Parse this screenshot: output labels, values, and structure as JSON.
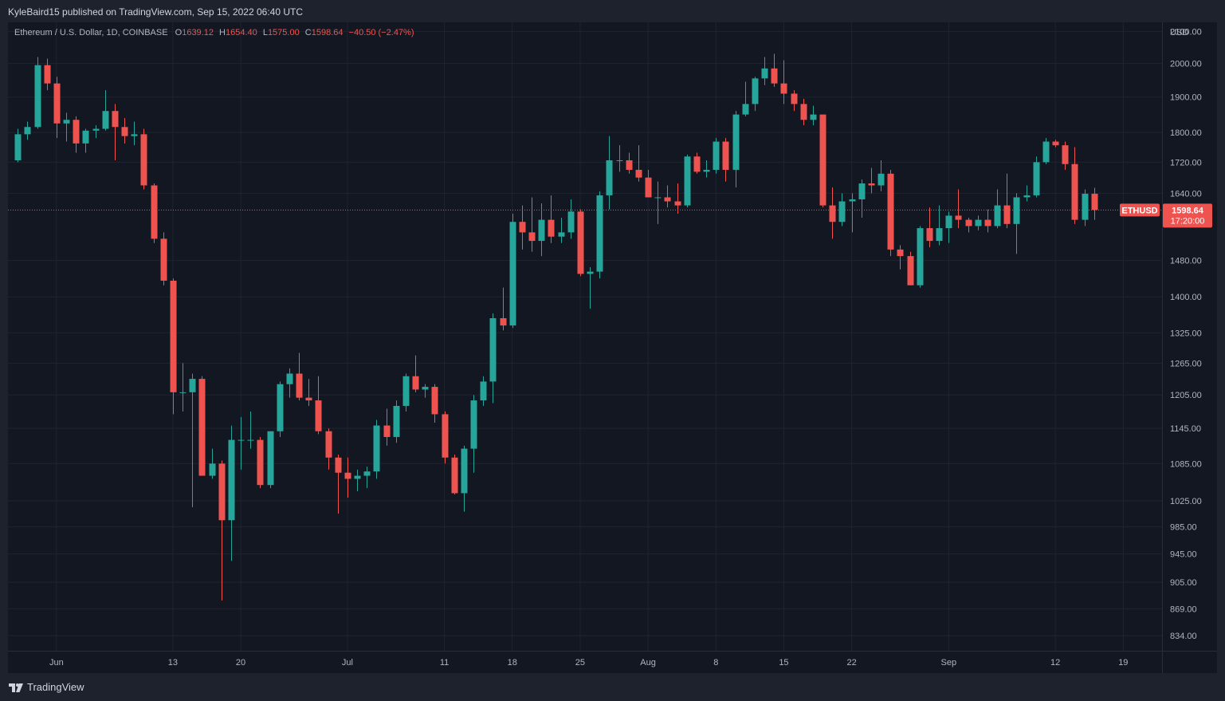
{
  "header": {
    "published_text": "KyleBaird15 published on TradingView.com, Sep 15, 2022 06:40 UTC"
  },
  "legend": {
    "title": "Ethereum / U.S. Dollar, 1D, COINBASE",
    "o_label": "O",
    "o_value": "1639.12",
    "h_label": "H",
    "h_value": "1654.40",
    "l_label": "L",
    "l_value": "1575.00",
    "c_label": "C",
    "c_value": "1598.64",
    "change": "−40.50 (−2.47%)"
  },
  "footer": {
    "brand": "TradingView"
  },
  "colors": {
    "up": "#26a69a",
    "down": "#ef5350",
    "background": "#131722",
    "chrome": "#1e222d",
    "grid": "#1f2431",
    "text": "#b2b5be"
  },
  "chart_data": {
    "type": "candlestick",
    "symbol": "ETHUSD",
    "currency_label": "USD",
    "ylim": [
      815,
      2130
    ],
    "y_scale": "log",
    "y_ticks": [
      "2100.00",
      "2000.00",
      "1900.00",
      "1800.00",
      "1720.00",
      "1640.00",
      "1480.00",
      "1400.00",
      "1325.00",
      "1265.00",
      "1205.00",
      "1145.00",
      "1085.00",
      "1025.00",
      "985.00",
      "945.00",
      "905.00",
      "869.00",
      "834.00"
    ],
    "x_ticks": [
      {
        "label": "Jun",
        "date": "2022-06-01"
      },
      {
        "label": "13",
        "date": "2022-06-13"
      },
      {
        "label": "20",
        "date": "2022-06-20"
      },
      {
        "label": "Jul",
        "date": "2022-07-01"
      },
      {
        "label": "11",
        "date": "2022-07-11"
      },
      {
        "label": "18",
        "date": "2022-07-18"
      },
      {
        "label": "25",
        "date": "2022-07-25"
      },
      {
        "label": "Aug",
        "date": "2022-08-01"
      },
      {
        "label": "8",
        "date": "2022-08-08"
      },
      {
        "label": "15",
        "date": "2022-08-15"
      },
      {
        "label": "22",
        "date": "2022-08-22"
      },
      {
        "label": "Sep",
        "date": "2022-09-01"
      },
      {
        "label": "12",
        "date": "2022-09-12"
      },
      {
        "label": "19",
        "date": "2022-09-19"
      }
    ],
    "x_range": [
      "2022-05-27",
      "2022-09-23"
    ],
    "grid": true,
    "last_price": {
      "value": 1598.64,
      "label_price": "1598.64",
      "label_countdown": "17:20:00",
      "symbol_tag": "ETHUSD"
    },
    "candles": [
      {
        "date": "2022-05-28",
        "o": 1725,
        "h": 1810,
        "l": 1720,
        "c": 1795
      },
      {
        "date": "2022-05-29",
        "o": 1795,
        "h": 1830,
        "l": 1780,
        "c": 1815
      },
      {
        "date": "2022-05-30",
        "o": 1815,
        "h": 2020,
        "l": 1810,
        "c": 1995
      },
      {
        "date": "2022-05-31",
        "o": 1995,
        "h": 2015,
        "l": 1920,
        "c": 1940
      },
      {
        "date": "2022-06-01",
        "o": 1940,
        "h": 1960,
        "l": 1785,
        "c": 1825
      },
      {
        "date": "2022-06-02",
        "o": 1825,
        "h": 1855,
        "l": 1775,
        "c": 1835
      },
      {
        "date": "2022-06-03",
        "o": 1835,
        "h": 1845,
        "l": 1745,
        "c": 1770
      },
      {
        "date": "2022-06-04",
        "o": 1770,
        "h": 1810,
        "l": 1745,
        "c": 1805
      },
      {
        "date": "2022-06-05",
        "o": 1805,
        "h": 1820,
        "l": 1785,
        "c": 1810
      },
      {
        "date": "2022-06-06",
        "o": 1810,
        "h": 1920,
        "l": 1805,
        "c": 1860
      },
      {
        "date": "2022-06-07",
        "o": 1860,
        "h": 1880,
        "l": 1725,
        "c": 1815
      },
      {
        "date": "2022-06-08",
        "o": 1815,
        "h": 1840,
        "l": 1770,
        "c": 1790
      },
      {
        "date": "2022-06-09",
        "o": 1790,
        "h": 1830,
        "l": 1765,
        "c": 1795
      },
      {
        "date": "2022-06-10",
        "o": 1795,
        "h": 1810,
        "l": 1650,
        "c": 1660
      },
      {
        "date": "2022-06-11",
        "o": 1660,
        "h": 1665,
        "l": 1520,
        "c": 1530
      },
      {
        "date": "2022-06-12",
        "o": 1530,
        "h": 1545,
        "l": 1425,
        "c": 1435
      },
      {
        "date": "2022-06-13",
        "o": 1435,
        "h": 1440,
        "l": 1170,
        "c": 1210
      },
      {
        "date": "2022-06-14",
        "o": 1210,
        "h": 1265,
        "l": 1175,
        "c": 1210
      },
      {
        "date": "2022-06-15",
        "o": 1210,
        "h": 1245,
        "l": 1015,
        "c": 1235
      },
      {
        "date": "2022-06-16",
        "o": 1235,
        "h": 1240,
        "l": 1065,
        "c": 1065
      },
      {
        "date": "2022-06-17",
        "o": 1065,
        "h": 1110,
        "l": 1060,
        "c": 1085
      },
      {
        "date": "2022-06-18",
        "o": 1085,
        "h": 1090,
        "l": 880,
        "c": 995
      },
      {
        "date": "2022-06-19",
        "o": 995,
        "h": 1150,
        "l": 935,
        "c": 1125
      },
      {
        "date": "2022-06-20",
        "o": 1125,
        "h": 1165,
        "l": 1075,
        "c": 1125
      },
      {
        "date": "2022-06-21",
        "o": 1125,
        "h": 1175,
        "l": 1110,
        "c": 1125
      },
      {
        "date": "2022-06-22",
        "o": 1125,
        "h": 1130,
        "l": 1045,
        "c": 1050
      },
      {
        "date": "2022-06-23",
        "o": 1050,
        "h": 1135,
        "l": 1045,
        "c": 1140
      },
      {
        "date": "2022-06-24",
        "o": 1140,
        "h": 1230,
        "l": 1130,
        "c": 1225
      },
      {
        "date": "2022-06-25",
        "o": 1225,
        "h": 1255,
        "l": 1200,
        "c": 1245
      },
      {
        "date": "2022-06-26",
        "o": 1245,
        "h": 1285,
        "l": 1195,
        "c": 1200
      },
      {
        "date": "2022-06-27",
        "o": 1200,
        "h": 1235,
        "l": 1185,
        "c": 1195
      },
      {
        "date": "2022-06-28",
        "o": 1195,
        "h": 1240,
        "l": 1135,
        "c": 1140
      },
      {
        "date": "2022-06-29",
        "o": 1140,
        "h": 1145,
        "l": 1075,
        "c": 1095
      },
      {
        "date": "2022-06-30",
        "o": 1095,
        "h": 1100,
        "l": 1005,
        "c": 1070
      },
      {
        "date": "2022-07-01",
        "o": 1070,
        "h": 1095,
        "l": 1030,
        "c": 1060
      },
      {
        "date": "2022-07-02",
        "o": 1060,
        "h": 1075,
        "l": 1040,
        "c": 1065
      },
      {
        "date": "2022-07-03",
        "o": 1065,
        "h": 1080,
        "l": 1045,
        "c": 1072
      },
      {
        "date": "2022-07-04",
        "o": 1072,
        "h": 1160,
        "l": 1060,
        "c": 1150
      },
      {
        "date": "2022-07-05",
        "o": 1150,
        "h": 1180,
        "l": 1115,
        "c": 1130
      },
      {
        "date": "2022-07-06",
        "o": 1130,
        "h": 1195,
        "l": 1120,
        "c": 1185
      },
      {
        "date": "2022-07-07",
        "o": 1185,
        "h": 1245,
        "l": 1175,
        "c": 1240
      },
      {
        "date": "2022-07-08",
        "o": 1240,
        "h": 1280,
        "l": 1210,
        "c": 1215
      },
      {
        "date": "2022-07-09",
        "o": 1215,
        "h": 1225,
        "l": 1200,
        "c": 1220
      },
      {
        "date": "2022-07-10",
        "o": 1220,
        "h": 1225,
        "l": 1155,
        "c": 1170
      },
      {
        "date": "2022-07-11",
        "o": 1170,
        "h": 1175,
        "l": 1085,
        "c": 1095
      },
      {
        "date": "2022-07-12",
        "o": 1095,
        "h": 1100,
        "l": 1035,
        "c": 1037
      },
      {
        "date": "2022-07-13",
        "o": 1037,
        "h": 1115,
        "l": 1008,
        "c": 1110
      },
      {
        "date": "2022-07-14",
        "o": 1110,
        "h": 1205,
        "l": 1070,
        "c": 1195
      },
      {
        "date": "2022-07-15",
        "o": 1195,
        "h": 1240,
        "l": 1185,
        "c": 1230
      },
      {
        "date": "2022-07-16",
        "o": 1230,
        "h": 1365,
        "l": 1190,
        "c": 1355
      },
      {
        "date": "2022-07-17",
        "o": 1355,
        "h": 1420,
        "l": 1330,
        "c": 1340
      },
      {
        "date": "2022-07-18",
        "o": 1340,
        "h": 1590,
        "l": 1335,
        "c": 1570
      },
      {
        "date": "2022-07-19",
        "o": 1570,
        "h": 1610,
        "l": 1505,
        "c": 1545
      },
      {
        "date": "2022-07-20",
        "o": 1545,
        "h": 1630,
        "l": 1500,
        "c": 1525
      },
      {
        "date": "2022-07-21",
        "o": 1525,
        "h": 1615,
        "l": 1490,
        "c": 1575
      },
      {
        "date": "2022-07-22",
        "o": 1575,
        "h": 1635,
        "l": 1520,
        "c": 1535
      },
      {
        "date": "2022-07-23",
        "o": 1535,
        "h": 1580,
        "l": 1520,
        "c": 1545
      },
      {
        "date": "2022-07-24",
        "o": 1545,
        "h": 1625,
        "l": 1530,
        "c": 1595
      },
      {
        "date": "2022-07-25",
        "o": 1595,
        "h": 1600,
        "l": 1445,
        "c": 1450
      },
      {
        "date": "2022-07-26",
        "o": 1450,
        "h": 1465,
        "l": 1375,
        "c": 1455
      },
      {
        "date": "2022-07-27",
        "o": 1455,
        "h": 1645,
        "l": 1440,
        "c": 1635
      },
      {
        "date": "2022-07-28",
        "o": 1635,
        "h": 1790,
        "l": 1600,
        "c": 1725
      },
      {
        "date": "2022-07-29",
        "o": 1725,
        "h": 1765,
        "l": 1695,
        "c": 1725
      },
      {
        "date": "2022-07-30",
        "o": 1725,
        "h": 1745,
        "l": 1690,
        "c": 1700
      },
      {
        "date": "2022-07-31",
        "o": 1700,
        "h": 1765,
        "l": 1670,
        "c": 1680
      },
      {
        "date": "2022-08-01",
        "o": 1680,
        "h": 1700,
        "l": 1630,
        "c": 1630
      },
      {
        "date": "2022-08-02",
        "o": 1630,
        "h": 1670,
        "l": 1565,
        "c": 1630
      },
      {
        "date": "2022-08-03",
        "o": 1630,
        "h": 1660,
        "l": 1605,
        "c": 1620
      },
      {
        "date": "2022-08-04",
        "o": 1620,
        "h": 1665,
        "l": 1590,
        "c": 1610
      },
      {
        "date": "2022-08-05",
        "o": 1610,
        "h": 1740,
        "l": 1605,
        "c": 1735
      },
      {
        "date": "2022-08-06",
        "o": 1735,
        "h": 1745,
        "l": 1690,
        "c": 1695
      },
      {
        "date": "2022-08-07",
        "o": 1695,
        "h": 1725,
        "l": 1680,
        "c": 1700
      },
      {
        "date": "2022-08-08",
        "o": 1700,
        "h": 1785,
        "l": 1690,
        "c": 1775
      },
      {
        "date": "2022-08-09",
        "o": 1775,
        "h": 1785,
        "l": 1670,
        "c": 1700
      },
      {
        "date": "2022-08-10",
        "o": 1700,
        "h": 1860,
        "l": 1655,
        "c": 1850
      },
      {
        "date": "2022-08-11",
        "o": 1850,
        "h": 1945,
        "l": 1845,
        "c": 1880
      },
      {
        "date": "2022-08-12",
        "o": 1880,
        "h": 1960,
        "l": 1860,
        "c": 1955
      },
      {
        "date": "2022-08-13",
        "o": 1955,
        "h": 2020,
        "l": 1935,
        "c": 1985
      },
      {
        "date": "2022-08-14",
        "o": 1985,
        "h": 2030,
        "l": 1930,
        "c": 1940
      },
      {
        "date": "2022-08-15",
        "o": 1940,
        "h": 2010,
        "l": 1880,
        "c": 1910
      },
      {
        "date": "2022-08-16",
        "o": 1910,
        "h": 1920,
        "l": 1860,
        "c": 1880
      },
      {
        "date": "2022-08-17",
        "o": 1880,
        "h": 1895,
        "l": 1820,
        "c": 1835
      },
      {
        "date": "2022-08-18",
        "o": 1835,
        "h": 1875,
        "l": 1820,
        "c": 1850
      },
      {
        "date": "2022-08-19",
        "o": 1850,
        "h": 1850,
        "l": 1605,
        "c": 1610
      },
      {
        "date": "2022-08-20",
        "o": 1610,
        "h": 1655,
        "l": 1530,
        "c": 1570
      },
      {
        "date": "2022-08-21",
        "o": 1570,
        "h": 1640,
        "l": 1560,
        "c": 1620
      },
      {
        "date": "2022-08-22",
        "o": 1620,
        "h": 1640,
        "l": 1545,
        "c": 1625
      },
      {
        "date": "2022-08-23",
        "o": 1625,
        "h": 1675,
        "l": 1580,
        "c": 1665
      },
      {
        "date": "2022-08-24",
        "o": 1665,
        "h": 1705,
        "l": 1640,
        "c": 1660
      },
      {
        "date": "2022-08-25",
        "o": 1660,
        "h": 1725,
        "l": 1645,
        "c": 1690
      },
      {
        "date": "2022-08-26",
        "o": 1690,
        "h": 1700,
        "l": 1490,
        "c": 1505
      },
      {
        "date": "2022-08-27",
        "o": 1505,
        "h": 1515,
        "l": 1460,
        "c": 1490
      },
      {
        "date": "2022-08-28",
        "o": 1490,
        "h": 1500,
        "l": 1425,
        "c": 1425
      },
      {
        "date": "2022-08-29",
        "o": 1425,
        "h": 1560,
        "l": 1420,
        "c": 1555
      },
      {
        "date": "2022-08-30",
        "o": 1555,
        "h": 1605,
        "l": 1510,
        "c": 1525
      },
      {
        "date": "2022-08-31",
        "o": 1525,
        "h": 1610,
        "l": 1515,
        "c": 1555
      },
      {
        "date": "2022-09-01",
        "o": 1555,
        "h": 1595,
        "l": 1520,
        "c": 1585
      },
      {
        "date": "2022-09-02",
        "o": 1585,
        "h": 1650,
        "l": 1555,
        "c": 1575
      },
      {
        "date": "2022-09-03",
        "o": 1575,
        "h": 1580,
        "l": 1545,
        "c": 1560
      },
      {
        "date": "2022-09-04",
        "o": 1560,
        "h": 1585,
        "l": 1550,
        "c": 1575
      },
      {
        "date": "2022-09-05",
        "o": 1575,
        "h": 1600,
        "l": 1545,
        "c": 1560
      },
      {
        "date": "2022-09-06",
        "o": 1560,
        "h": 1650,
        "l": 1555,
        "c": 1610
      },
      {
        "date": "2022-09-07",
        "o": 1610,
        "h": 1690,
        "l": 1555,
        "c": 1565
      },
      {
        "date": "2022-09-08",
        "o": 1565,
        "h": 1640,
        "l": 1495,
        "c": 1630
      },
      {
        "date": "2022-09-09",
        "o": 1630,
        "h": 1660,
        "l": 1620,
        "c": 1635
      },
      {
        "date": "2022-09-10",
        "o": 1635,
        "h": 1735,
        "l": 1630,
        "c": 1720
      },
      {
        "date": "2022-09-11",
        "o": 1720,
        "h": 1785,
        "l": 1715,
        "c": 1775
      },
      {
        "date": "2022-09-12",
        "o": 1775,
        "h": 1780,
        "l": 1760,
        "c": 1765
      },
      {
        "date": "2022-09-13",
        "o": 1765,
        "h": 1775,
        "l": 1700,
        "c": 1715
      },
      {
        "date": "2022-09-14",
        "o": 1715,
        "h": 1760,
        "l": 1565,
        "c": 1575
      },
      {
        "date": "2022-09-15",
        "o": 1575,
        "h": 1650,
        "l": 1560,
        "c": 1639
      },
      {
        "date": "2022-09-16",
        "o": 1639,
        "h": 1654,
        "l": 1575,
        "c": 1599
      }
    ]
  }
}
